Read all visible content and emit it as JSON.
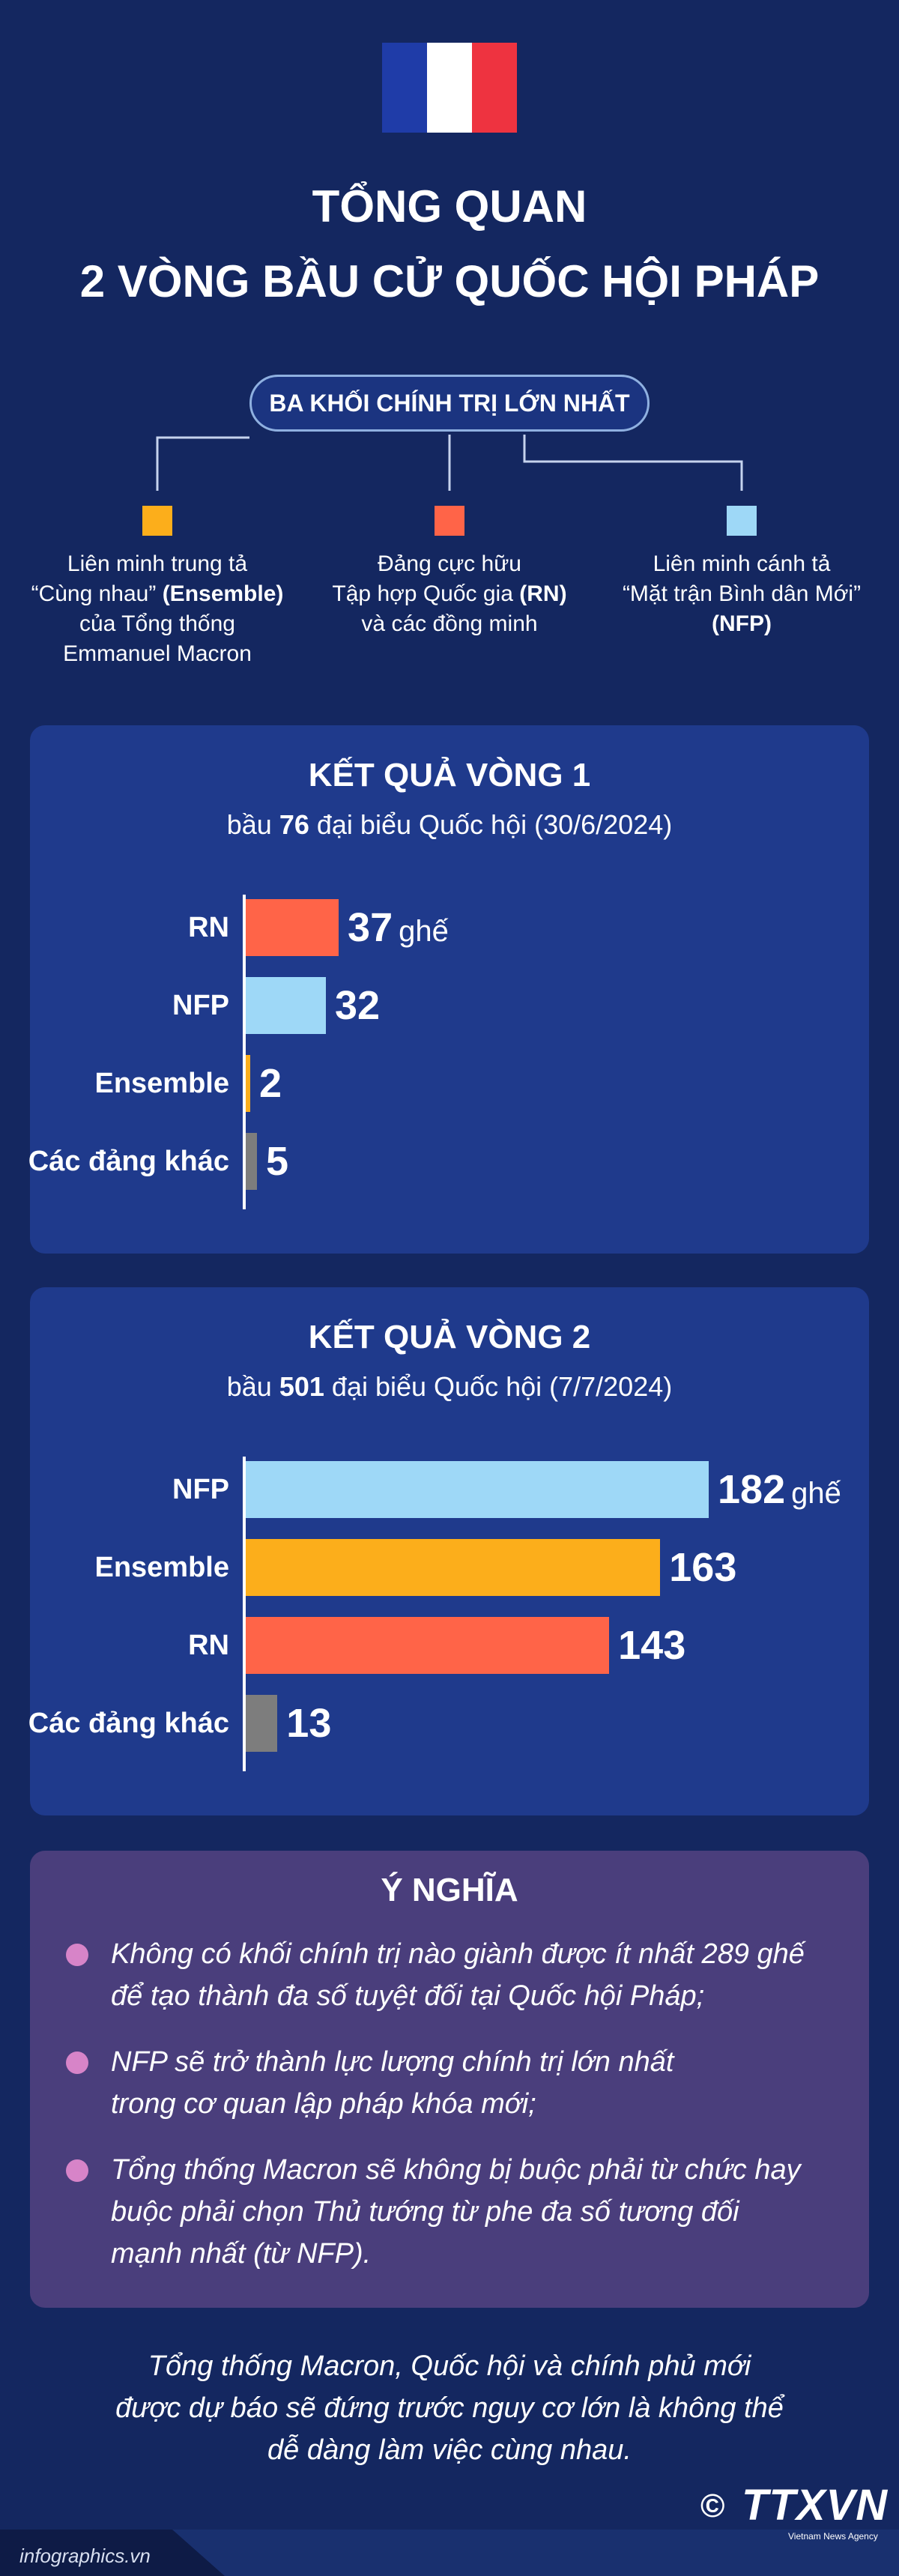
{
  "header": {
    "title_line1": "TỔNG QUAN",
    "title_line2": "2 VÒNG BẦU CỬ QUỐC HỘI PHÁP"
  },
  "colors": {
    "background": "#142760",
    "panel": "#1f3a8c",
    "rn": "#ff6448",
    "nfp": "#9ed8f7",
    "ensemble": "#fcae1b",
    "others": "#7d7d7d",
    "meaning_panel": "#4a3e7c",
    "bullet": "#d784c8",
    "flag_blue": "#1f3ca8",
    "flag_white": "#ffffff",
    "flag_red": "#ee3340"
  },
  "blocs": {
    "heading": "BA KHỐI CHÍNH TRỊ LỚN NHẤT",
    "items": [
      {
        "color": "#fcae1b",
        "line1": "Liên minh trung tả",
        "line2a": "“Cùng nhau” ",
        "line2b": "(Ensemble)",
        "line3": "của Tổng thống",
        "line4": "Emmanuel Macron"
      },
      {
        "color": "#ff6448",
        "line1": "Đảng cực hữu",
        "line2a": "Tập hợp Quốc gia ",
        "line2b": "(RN)",
        "line3": "và các đồng minh",
        "line4": ""
      },
      {
        "color": "#9ed8f7",
        "line1": "Liên minh cánh tả",
        "line2a": "“Mặt trận Bình dân Mới”",
        "line2b": "",
        "line3": "(NFP)",
        "line4": ""
      }
    ]
  },
  "chart_data": [
    {
      "type": "bar",
      "orientation": "horizontal",
      "title": "KẾT QUẢ VÒNG 1",
      "subtitle_prefix": "bầu ",
      "subtitle_number": "76",
      "subtitle_suffix": " đại biểu Quốc hội (30/6/2024)",
      "categories": [
        "RN",
        "NFP",
        "Ensemble",
        "Các đảng khác"
      ],
      "values": [
        37,
        32,
        2,
        5
      ],
      "value_labels": [
        "37",
        "32",
        "2",
        "5"
      ],
      "unit": "ghế",
      "colors": [
        "#ff6448",
        "#9ed8f7",
        "#fcae1b",
        "#7d7d7d"
      ]
    },
    {
      "type": "bar",
      "orientation": "horizontal",
      "title": "KẾT QUẢ VÒNG 2",
      "subtitle_prefix": "bầu ",
      "subtitle_number": "501",
      "subtitle_suffix": " đại biểu Quốc hội (7/7/2024)",
      "categories": [
        "NFP",
        "Ensemble",
        "RN",
        "Các đảng khác"
      ],
      "values": [
        182,
        163,
        143,
        13
      ],
      "value_labels": [
        "182",
        "163",
        "143",
        "13"
      ],
      "unit": "ghế",
      "colors": [
        "#9ed8f7",
        "#fcae1b",
        "#ff6448",
        "#7d7d7d"
      ]
    }
  ],
  "meaning": {
    "title": "Ý NGHĨA",
    "points": [
      {
        "line1": "Không có khối chính trị nào giành được ít nhất 289 ghế",
        "line2": "để tạo thành đa số tuyệt đối tại Quốc hội Pháp;",
        "line3": ""
      },
      {
        "line1": "NFP sẽ trở thành lực lượng chính trị lớn nhất",
        "line2": "trong cơ quan lập pháp khóa mới;",
        "line3": ""
      },
      {
        "line1": "Tổng thống Macron sẽ không bị buộc phải từ chức hay",
        "line2": "buộc phải chọn Thủ tướng từ phe đa số tương đối",
        "line3": "mạnh nhất (từ NFP)."
      }
    ]
  },
  "footer": {
    "line1": "Tổng thống Macron, Quốc hội và chính phủ mới",
    "line2": "được dự báo sẽ đứng trước nguy cơ lớn là không thể",
    "line3": "dễ dàng làm việc cùng nhau.",
    "site": "infographics.vn",
    "copyright": "©",
    "logo": "TTXVN",
    "logo_sub": "Vietnam News Agency"
  }
}
